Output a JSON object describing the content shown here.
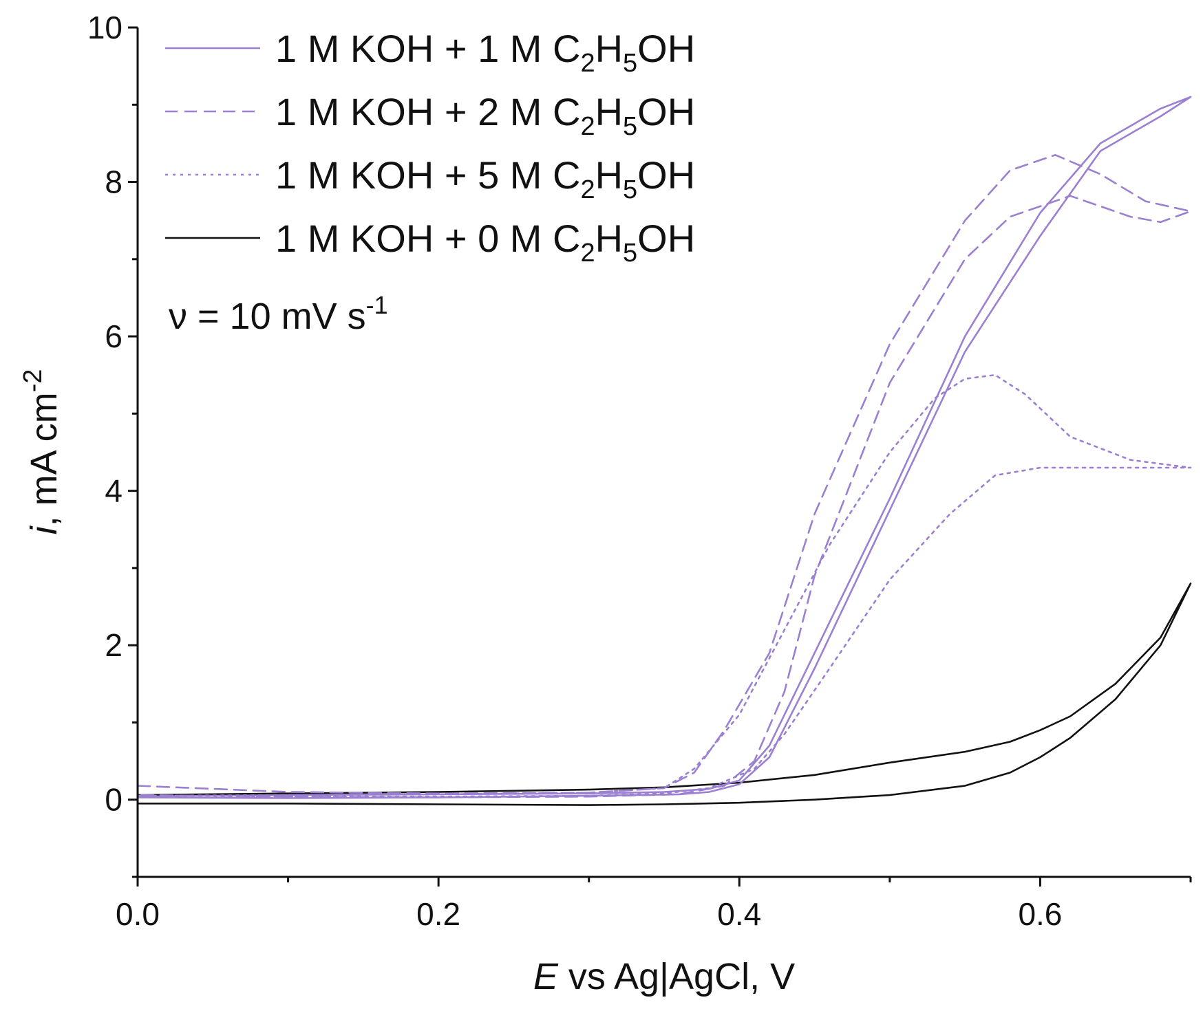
{
  "chart_data": {
    "type": "line",
    "xlabel": {
      "symbol": "E",
      "rest": " vs Ag|AgCl, V"
    },
    "ylabel": {
      "symbol": "i",
      "rest": ", mA cm",
      "sup": "-2"
    },
    "xlim": [
      0.0,
      0.7
    ],
    "ylim": [
      -1.0,
      10.0
    ],
    "xticks": [
      0.0,
      0.2,
      0.4,
      0.6
    ],
    "xtick_labels": [
      "0.0",
      "0.2",
      "0.4",
      "0.6"
    ],
    "yticks": [
      0,
      2,
      4,
      6,
      8,
      10
    ],
    "ytick_labels": [
      "0",
      "2",
      "4",
      "6",
      "8",
      "10"
    ],
    "grid": false,
    "legend_position": "top-left",
    "annotation": {
      "symbol": "ν",
      "text": " = 10 mV s",
      "sup": "-1"
    },
    "series": [
      {
        "name": "1 M KOH + 1 M C2H5OH",
        "legend": {
          "prefix": "1 M KOH + 1 M C",
          "sub1": "2",
          "mid": "H",
          "sub2": "5",
          "suffix": "OH"
        },
        "color": "#9b7fd1",
        "dash": "solid",
        "x": [
          0.0,
          0.1,
          0.2,
          0.3,
          0.35,
          0.38,
          0.4,
          0.42,
          0.45,
          0.5,
          0.55,
          0.6,
          0.64,
          0.68,
          0.7,
          0.68,
          0.64,
          0.6,
          0.55,
          0.5,
          0.45,
          0.42,
          0.4,
          0.38,
          0.36,
          0.3,
          0.2,
          0.1,
          0.0
        ],
        "y": [
          0.04,
          0.06,
          0.07,
          0.08,
          0.1,
          0.14,
          0.25,
          0.7,
          1.9,
          3.9,
          6.0,
          7.6,
          8.5,
          8.95,
          9.1,
          8.85,
          8.4,
          7.3,
          5.8,
          3.75,
          1.7,
          0.55,
          0.2,
          0.1,
          0.07,
          0.05,
          0.03,
          0.02,
          0.03
        ]
      },
      {
        "name": "1 M KOH + 2 M C2H5OH",
        "legend": {
          "prefix": "1 M KOH + 2 M C",
          "sub1": "2",
          "mid": "H",
          "sub2": "5",
          "suffix": "OH"
        },
        "color": "#9b7fd1",
        "dash": "dashed",
        "x": [
          0.0,
          0.1,
          0.2,
          0.3,
          0.35,
          0.37,
          0.39,
          0.42,
          0.45,
          0.5,
          0.55,
          0.58,
          0.61,
          0.64,
          0.67,
          0.7,
          0.68,
          0.66,
          0.62,
          0.58,
          0.55,
          0.5,
          0.45,
          0.43,
          0.41,
          0.39,
          0.36,
          0.3,
          0.2,
          0.1,
          0.0
        ],
        "y": [
          0.18,
          0.1,
          0.08,
          0.09,
          0.15,
          0.35,
          0.9,
          1.9,
          3.7,
          5.9,
          7.5,
          8.15,
          8.35,
          8.1,
          7.75,
          7.62,
          7.48,
          7.55,
          7.82,
          7.55,
          7.0,
          5.4,
          2.9,
          1.4,
          0.5,
          0.18,
          0.07,
          0.04,
          0.03,
          0.04,
          0.06
        ]
      },
      {
        "name": "1 M KOH + 5 M C2H5OH",
        "legend": {
          "prefix": "1 M KOH + 5 M C",
          "sub1": "2",
          "mid": "H",
          "sub2": "5",
          "suffix": "OH"
        },
        "color": "#9b7fd1",
        "dash": "dotted",
        "x": [
          0.0,
          0.1,
          0.2,
          0.3,
          0.35,
          0.37,
          0.4,
          0.43,
          0.46,
          0.5,
          0.53,
          0.55,
          0.57,
          0.59,
          0.62,
          0.66,
          0.7,
          0.67,
          0.63,
          0.6,
          0.57,
          0.54,
          0.5,
          0.46,
          0.43,
          0.41,
          0.38,
          0.35,
          0.3,
          0.2,
          0.1,
          0.0
        ],
        "y": [
          0.05,
          0.06,
          0.07,
          0.09,
          0.15,
          0.4,
          1.1,
          2.2,
          3.3,
          4.5,
          5.2,
          5.45,
          5.5,
          5.25,
          4.7,
          4.4,
          4.3,
          4.3,
          4.3,
          4.3,
          4.2,
          3.7,
          2.85,
          1.7,
          0.85,
          0.4,
          0.15,
          0.08,
          0.05,
          0.04,
          0.04,
          0.05
        ]
      },
      {
        "name": "1 M KOH + 0 M C2H5OH",
        "legend": {
          "prefix": "1 M KOH + 0 M C",
          "sub1": "2",
          "mid": "H",
          "sub2": "5",
          "suffix": "OH"
        },
        "color": "#111111",
        "dash": "solid",
        "x": [
          0.0,
          0.1,
          0.2,
          0.3,
          0.35,
          0.4,
          0.45,
          0.5,
          0.55,
          0.58,
          0.6,
          0.62,
          0.65,
          0.68,
          0.7,
          0.68,
          0.65,
          0.62,
          0.6,
          0.58,
          0.55,
          0.5,
          0.45,
          0.4,
          0.35,
          0.3,
          0.2,
          0.1,
          0.0
        ],
        "y": [
          0.06,
          0.08,
          0.1,
          0.13,
          0.16,
          0.22,
          0.32,
          0.48,
          0.62,
          0.75,
          0.9,
          1.08,
          1.5,
          2.1,
          2.8,
          2.0,
          1.3,
          0.8,
          0.55,
          0.35,
          0.18,
          0.06,
          0.0,
          -0.04,
          -0.06,
          -0.07,
          -0.06,
          -0.05,
          -0.05
        ]
      }
    ]
  }
}
